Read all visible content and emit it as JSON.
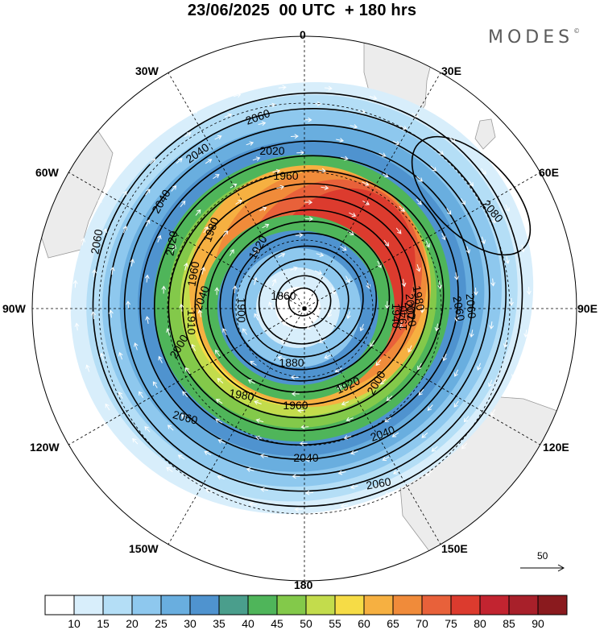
{
  "title": "23/06/2025  00 UTC  + 180 hrs",
  "logo": "MODES",
  "logo_mark": "©",
  "longitude_labels": {
    "lon_0": "0",
    "lon_30e": "30E",
    "lon_60e": "60E",
    "lon_90e": "90E",
    "lon_120e": "120E",
    "lon_150e": "150E",
    "lon_180": "180",
    "lon_150w": "150W",
    "lon_120w": "120W",
    "lon_90w": "90W",
    "lon_60w": "60W",
    "lon_30w": "30W"
  },
  "wind_reference": {
    "label": "50"
  },
  "colorbar": {
    "levels": [
      "10",
      "15",
      "20",
      "25",
      "30",
      "35",
      "40",
      "45",
      "50",
      "55",
      "60",
      "65",
      "70",
      "75",
      "80",
      "85",
      "90"
    ],
    "colors": [
      "#ffffff",
      "#d8eefb",
      "#b4def6",
      "#8ec8ee",
      "#69aedf",
      "#4f93cf",
      "#4a9e8c",
      "#4fb55a",
      "#83c94a",
      "#c3dc4c",
      "#f6dc46",
      "#f6b041",
      "#f08b3a",
      "#e8613a",
      "#dc3b2e",
      "#c22430",
      "#a8202a",
      "#8a1a1e"
    ]
  },
  "contour_labels": [
    "2080",
    "2060",
    "2060",
    "2060",
    "2060",
    "2060",
    "2060",
    "2040",
    "2040",
    "2040",
    "2040",
    "2040",
    "2020",
    "2020",
    "2020",
    "2000",
    "2000",
    "2000",
    "1980",
    "1980",
    "1980",
    "1960",
    "1960",
    "1960",
    "1940",
    "1940",
    "1920",
    "1920",
    "1900",
    "1880",
    "1860",
    "1910"
  ],
  "colors": {
    "land": "#ececec",
    "ocean": "#ffffff",
    "contour": "#000000",
    "arrow": "#ffffff"
  }
}
